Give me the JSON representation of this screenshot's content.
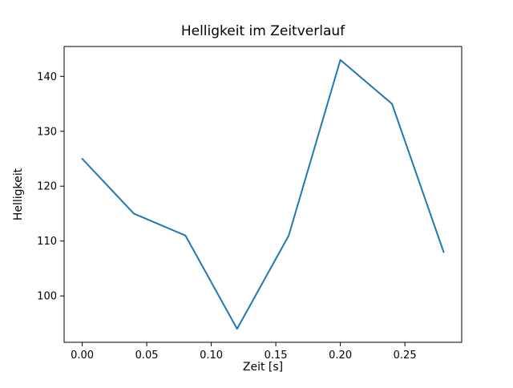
{
  "figure": {
    "background": "#ffffff"
  },
  "chart_data": {
    "type": "line",
    "title": "Helligkeit im Zeitverlauf",
    "xlabel": "Zeit [s]",
    "ylabel": "Helligkeit",
    "x": [
      0.0,
      0.04,
      0.08,
      0.12,
      0.16,
      0.2,
      0.24,
      0.28
    ],
    "y": [
      125,
      115,
      111,
      94,
      111,
      143,
      135,
      108
    ],
    "series": [
      {
        "name": "Helligkeit",
        "values": [
          125,
          115,
          111,
          94,
          111,
          143,
          135,
          108
        ]
      }
    ],
    "line_color": "#1f77b4",
    "xlim": [
      -0.014,
      0.294
    ],
    "ylim": [
      91.55,
      145.45
    ],
    "xticks": [
      0.0,
      0.05,
      0.1,
      0.15,
      0.2,
      0.25
    ],
    "xtick_labels": [
      "0.00",
      "0.05",
      "0.10",
      "0.15",
      "0.20",
      "0.25"
    ],
    "yticks": [
      100,
      110,
      120,
      130,
      140
    ],
    "ytick_labels": [
      "100",
      "110",
      "120",
      "130",
      "140"
    ],
    "grid": false,
    "legend": "none"
  }
}
